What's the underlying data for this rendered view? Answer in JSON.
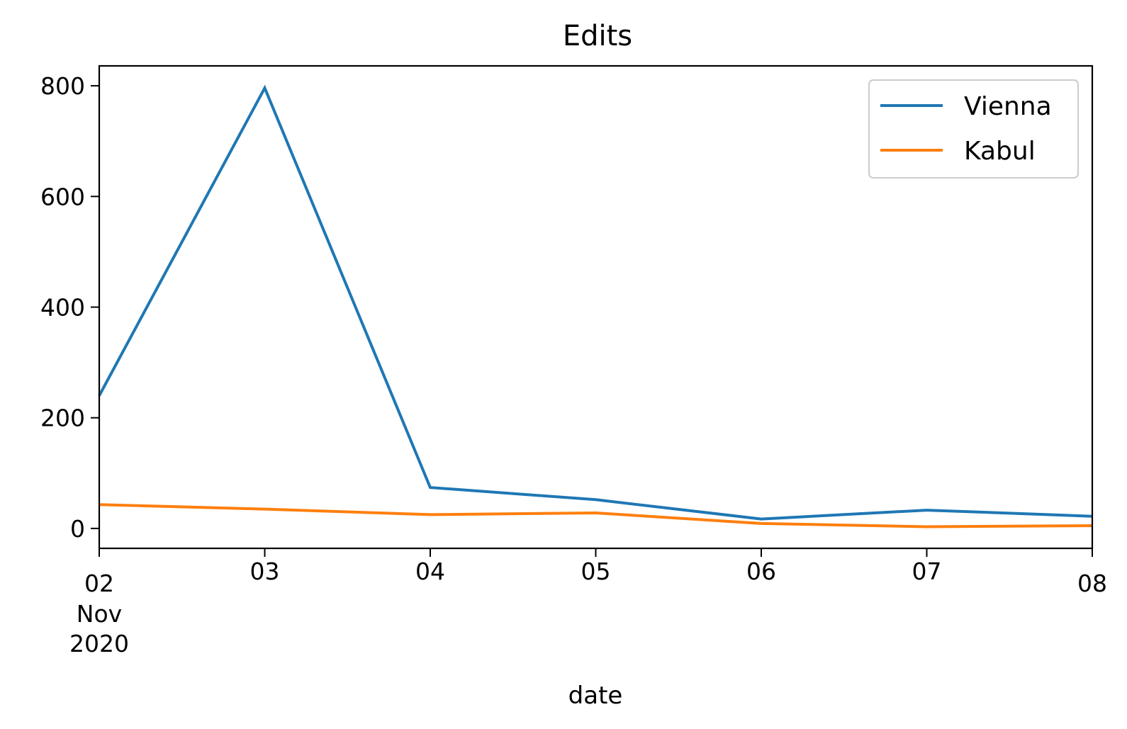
{
  "chart_data": {
    "type": "line",
    "title": "Edits",
    "xlabel": "date",
    "ylabel": "",
    "x": [
      "2020-11-02",
      "2020-11-03",
      "2020-11-04",
      "2020-11-05",
      "2020-11-06",
      "2020-11-07",
      "2020-11-08"
    ],
    "x_tick_labels": [
      "02",
      "03",
      "04",
      "05",
      "06",
      "07",
      "08"
    ],
    "x_tick_sublabels": [
      "Nov",
      "2020"
    ],
    "y_ticks": [
      0,
      200,
      400,
      600,
      800
    ],
    "y_tick_labels": [
      "0",
      "200",
      "400",
      "600",
      "800"
    ],
    "ylim": [
      -36,
      836
    ],
    "grid": false,
    "legend_position": "upper right",
    "series": [
      {
        "name": "Vienna",
        "color": "#1f77b4",
        "values": [
          240,
          796,
          74,
          52,
          17,
          33,
          22
        ]
      },
      {
        "name": "Kabul",
        "color": "#ff7f0e",
        "values": [
          43,
          35,
          25,
          28,
          9,
          3,
          5
        ]
      }
    ]
  }
}
